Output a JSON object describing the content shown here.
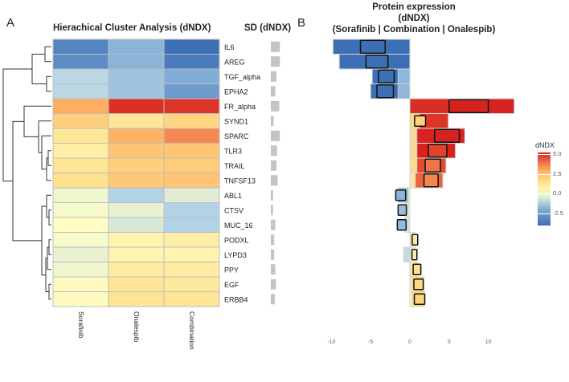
{
  "panel_labels": {
    "a": "A",
    "b": "B"
  },
  "heatmap_title": "Hierachical Cluster Analysis (dNDX)",
  "sd_title": "SD (dNDX)",
  "bar_title": [
    "Protein expression",
    "(dNDX)",
    "(Sorafinib | Combination | Onalespib)"
  ],
  "legend": {
    "title": "dNDX",
    "ticks": [
      "5.0",
      "2.5",
      "0.0",
      "-2.5"
    ],
    "tick_values": [
      5.0,
      2.5,
      0.0,
      -2.5
    ],
    "min": -4,
    "max": 5.2
  },
  "colors": {
    "low": "#3d6fb5",
    "mid": "#ffffc8",
    "high": "#d7231f",
    "grid": "#bdbdbd"
  },
  "chart_data": [
    {
      "type": "heatmap",
      "title": "Hierachical Cluster Analysis (dNDX)",
      "columns": [
        "Sorafinib",
        "Onalespib",
        "Combination"
      ],
      "rows": [
        "IL6",
        "AREG",
        "TGF_alpha",
        "EPHA2",
        "FR_alpha",
        "SYND1",
        "SPARC",
        "TLR3",
        "TRAIL",
        "TNFSF13",
        "ABL1",
        "CTSV",
        "MUC_16",
        "PODXL",
        "LYPD3",
        "PPY",
        "EGF",
        "ERBB4"
      ],
      "values": [
        [
          -3.2,
          -1.8,
          -4.2
        ],
        [
          -2.9,
          -1.8,
          -3.6
        ],
        [
          -0.9,
          -1.4,
          -2.0
        ],
        [
          -0.9,
          -1.4,
          -2.4
        ],
        [
          3.0,
          5.0,
          4.9
        ],
        [
          2.0,
          1.2,
          1.8
        ],
        [
          1.2,
          2.9,
          3.6
        ],
        [
          0.8,
          2.3,
          2.3
        ],
        [
          1.2,
          2.0,
          2.1
        ],
        [
          1.4,
          2.2,
          2.3
        ],
        [
          -0.2,
          -1.0,
          -0.4
        ],
        [
          -0.1,
          -0.3,
          -1.0
        ],
        [
          0.1,
          -0.5,
          -1.0
        ],
        [
          -0.1,
          0.6,
          0.8
        ],
        [
          -0.3,
          0.6,
          0.6
        ],
        [
          -0.2,
          0.9,
          0.9
        ],
        [
          0.2,
          1.2,
          1.0
        ],
        [
          0.2,
          1.3,
          1.2
        ]
      ]
    },
    {
      "type": "bar",
      "title": "Protein expression (dNDX) (Sorafinib | Combination | Onalespib)",
      "categories": [
        "IL6",
        "AREG",
        "TGF_alpha",
        "EPHA2",
        "FR_alpha",
        "SYND1",
        "SPARC",
        "TLR3",
        "TRAIL",
        "TNFSF13",
        "ABL1",
        "CTSV",
        "MUC_16",
        "PODXL",
        "LYPD3",
        "PPY",
        "EGF",
        "ERBB4"
      ],
      "series": [
        {
          "name": "Sorafinib",
          "values": [
            -5.5,
            -5.0,
            -1.5,
            -1.5,
            5.0,
            1.2,
            0.9,
            0.9,
            0.9,
            0.7,
            -0.2,
            -0.2,
            -0.1,
            0.1,
            0.1,
            0.1,
            0.2,
            0.3
          ]
        },
        {
          "name": "Combination",
          "values": [
            -6.3,
            -5.6,
            -4.0,
            -4.2,
            10.0,
            2.0,
            6.3,
            4.7,
            3.9,
            3.6,
            -1.8,
            -1.5,
            -1.6,
            1.0,
            0.9,
            1.4,
            1.7,
            1.9
          ]
        },
        {
          "name": "Onalespib",
          "values": [
            -9.8,
            -9.0,
            -4.8,
            -5.0,
            13.3,
            4.9,
            7.0,
            5.8,
            4.6,
            4.2,
            -1.5,
            -0.6,
            -0.6,
            0.7,
            -0.8,
            0.9,
            1.8,
            1.9
          ]
        }
      ],
      "xlim": [
        -11,
        14
      ],
      "xticks": [
        -10,
        -5,
        0,
        5,
        10
      ],
      "xtick_labels": [
        "-10",
        "-5",
        "0",
        "5",
        "10"
      ]
    },
    {
      "type": "bar",
      "title": "SD (dNDX)",
      "categories": [
        "IL6",
        "AREG",
        "TGF_alpha",
        "EPHA2",
        "FR_alpha",
        "SYND1",
        "SPARC",
        "TLR3",
        "TRAIL",
        "TNFSF13",
        "ABL1",
        "CTSV",
        "MUC_16",
        "PODXL",
        "LYPD3",
        "PPY",
        "EGF",
        "ERBB4"
      ],
      "values": [
        1.6,
        1.6,
        1.0,
        0.8,
        1.5,
        0.5,
        1.6,
        1.1,
        1.0,
        1.2,
        0.4,
        0.4,
        0.8,
        0.6,
        0.6,
        0.8,
        0.9,
        0.7
      ]
    }
  ]
}
